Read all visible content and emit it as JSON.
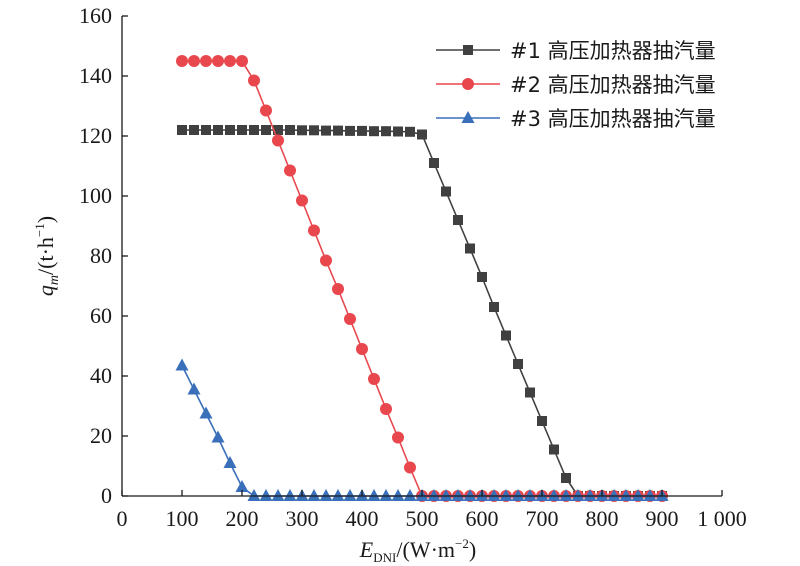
{
  "chart_data": {
    "type": "line",
    "title": "",
    "xlabel": {
      "main": "E",
      "sub": "DNI",
      "unit": "/(W·m",
      "unit_sup": "−2",
      "unit_close": ")"
    },
    "ylabel": {
      "main": "q",
      "sub": "m",
      "unit": "/(t·h",
      "unit_sup": "−1",
      "unit_close": ")"
    },
    "xlim": [
      0,
      1000
    ],
    "ylim": [
      0,
      160
    ],
    "x_ticks": [
      0,
      100,
      200,
      300,
      400,
      500,
      600,
      700,
      800,
      900,
      1000
    ],
    "x_tick_labels": [
      "0",
      "100",
      "200",
      "300",
      "400",
      "500",
      "600",
      "700",
      "800",
      "900",
      "1 000"
    ],
    "y_ticks": [
      0,
      20,
      40,
      60,
      80,
      100,
      120,
      140,
      160
    ],
    "y_tick_labels": [
      "0",
      "20",
      "40",
      "60",
      "80",
      "100",
      "120",
      "140",
      "160"
    ],
    "grid": false,
    "legend_position": "top-right",
    "x": [
      100,
      120,
      140,
      160,
      180,
      200,
      220,
      240,
      260,
      280,
      300,
      320,
      340,
      360,
      380,
      400,
      420,
      440,
      460,
      480,
      500,
      520,
      540,
      560,
      580,
      600,
      620,
      640,
      660,
      680,
      700,
      720,
      740,
      760,
      780,
      800,
      820,
      840,
      860,
      880,
      900
    ],
    "series": [
      {
        "name": "#1 高压加热器抽汽量",
        "color": "#404040",
        "marker": "square",
        "values": [
          122,
          122,
          122,
          122,
          122,
          122,
          122,
          122,
          122,
          122,
          121.9,
          121.9,
          121.8,
          121.8,
          121.7,
          121.7,
          121.6,
          121.6,
          121.5,
          121.4,
          120.5,
          111,
          101.5,
          92,
          82.5,
          73,
          63,
          53.5,
          44,
          34.5,
          25,
          15.5,
          6,
          0,
          0,
          0,
          0,
          0,
          0,
          0,
          0
        ]
      },
      {
        "name": "#2 高压加热器抽汽量",
        "color": "#e8474d",
        "marker": "circle",
        "values": [
          145,
          145,
          145,
          145,
          145,
          145,
          138.5,
          128.5,
          118.5,
          108.5,
          98.5,
          88.5,
          78.5,
          69,
          59,
          49,
          39,
          29,
          19.5,
          9.5,
          0,
          0,
          0,
          0,
          0,
          0,
          0,
          0,
          0,
          0,
          0,
          0,
          0,
          0,
          0,
          0,
          0,
          0,
          0,
          0,
          0
        ]
      },
      {
        "name": "#3 高压加热器抽汽量",
        "color": "#3a6fba",
        "marker": "triangle",
        "values": [
          43.5,
          35.5,
          27.5,
          19.5,
          11,
          3,
          0,
          0,
          0,
          0,
          0,
          0,
          0,
          0,
          0,
          0,
          0,
          0,
          0,
          0,
          0,
          0,
          0,
          0,
          0,
          0,
          0,
          0,
          0,
          0,
          0,
          0,
          0,
          0,
          0,
          0,
          0,
          0,
          0,
          0,
          0
        ]
      }
    ]
  }
}
